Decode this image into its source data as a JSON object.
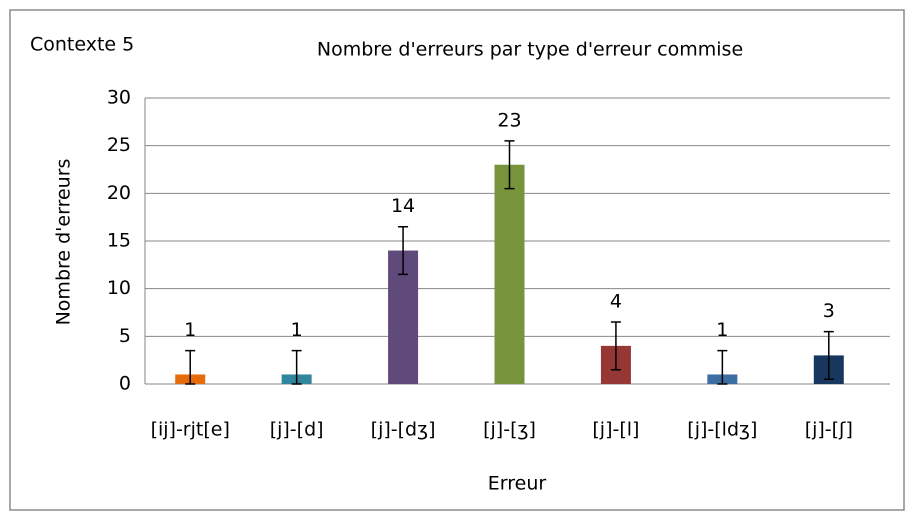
{
  "chart_data": {
    "type": "bar",
    "title": "Nombre d'erreurs par type d'erreur commise",
    "annotation": "Contexte 5",
    "x_label": "Erreur",
    "y_label": "Nombre d'erreurs",
    "categories": [
      "[ij]-rjt[e]",
      "[j]-[d]",
      "[j]-[dʒ]",
      "[j]-[ʒ]",
      "[j]-[l]",
      "[j]-[ldʒ]",
      "[j]-[ʃ]"
    ],
    "values": [
      1,
      1,
      14,
      23,
      4,
      1,
      3
    ],
    "errors": [
      2.5,
      2.5,
      2.5,
      2.5,
      2.5,
      2.5,
      2.5
    ],
    "colors": [
      "#e46c0a",
      "#31859c",
      "#604a7b",
      "#77933c",
      "#953735",
      "#3c6ea4",
      "#17375e"
    ],
    "ylim": [
      0,
      30
    ],
    "yticks": [
      0,
      5,
      10,
      15,
      20,
      25,
      30
    ],
    "grid": true
  }
}
